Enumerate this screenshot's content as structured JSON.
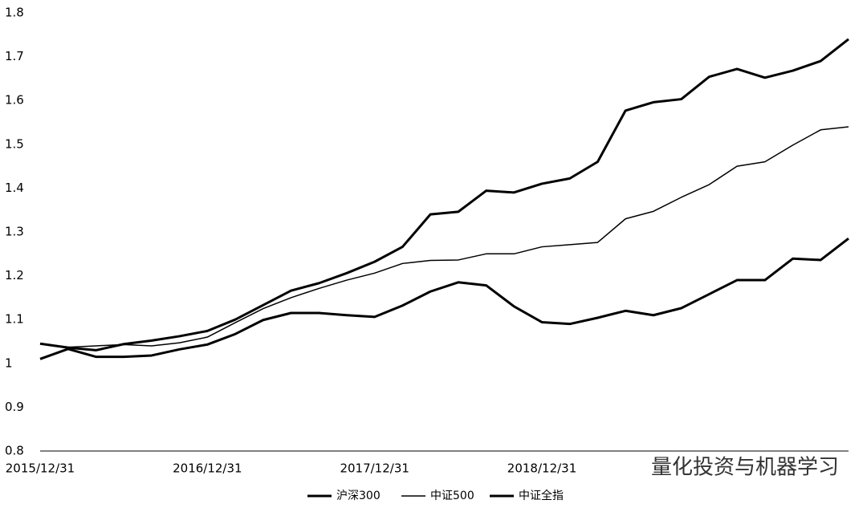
{
  "chart_data": {
    "type": "line",
    "categories": [
      "2015/12/31",
      null,
      null,
      null,
      null,
      null,
      "2016/12/31",
      null,
      null,
      null,
      null,
      null,
      "2017/12/31",
      null,
      null,
      null,
      null,
      null,
      "2018/12/31",
      null,
      null,
      null,
      null,
      null,
      null,
      null,
      null,
      null,
      null,
      null
    ],
    "series": [
      {
        "name": "沪深300",
        "color": "#000000",
        "values": [
          1.045,
          1.036,
          1.03,
          1.044,
          1.052,
          1.062,
          1.074,
          1.1,
          1.133,
          1.166,
          1.183,
          1.206,
          1.232,
          1.266,
          1.34,
          1.346,
          1.394,
          1.39,
          1.41,
          1.422,
          1.46,
          1.577,
          1.596,
          1.603,
          1.654,
          1.672,
          1.652,
          1.668,
          1.69,
          1.74
        ]
      },
      {
        "name": "中证500",
        "color": "#000000",
        "values": [
          1.045,
          1.037,
          1.04,
          1.043,
          1.04,
          1.047,
          1.06,
          1.093,
          1.125,
          1.15,
          1.171,
          1.19,
          1.206,
          1.228,
          1.235,
          1.236,
          1.25,
          1.25,
          1.266,
          1.271,
          1.276,
          1.33,
          1.347,
          1.379,
          1.408,
          1.45,
          1.46,
          1.498,
          1.533,
          1.54
        ]
      },
      {
        "name": "中证全指",
        "color": "#000000",
        "values": [
          1.01,
          1.033,
          1.015,
          1.015,
          1.018,
          1.032,
          1.043,
          1.067,
          1.099,
          1.115,
          1.115,
          1.11,
          1.106,
          1.132,
          1.164,
          1.185,
          1.178,
          1.13,
          1.094,
          1.09,
          1.104,
          1.12,
          1.11,
          1.126,
          1.158,
          1.19,
          1.19,
          1.239,
          1.236,
          1.285
        ]
      }
    ],
    "ylim": [
      0.8,
      1.8
    ],
    "yticks": [
      0.8,
      0.9,
      1,
      1.1,
      1.2,
      1.3,
      1.4,
      1.5,
      1.6,
      1.7,
      1.8
    ],
    "grid": false,
    "legend": "bottom",
    "annotation": "量化投资与机器学习"
  }
}
